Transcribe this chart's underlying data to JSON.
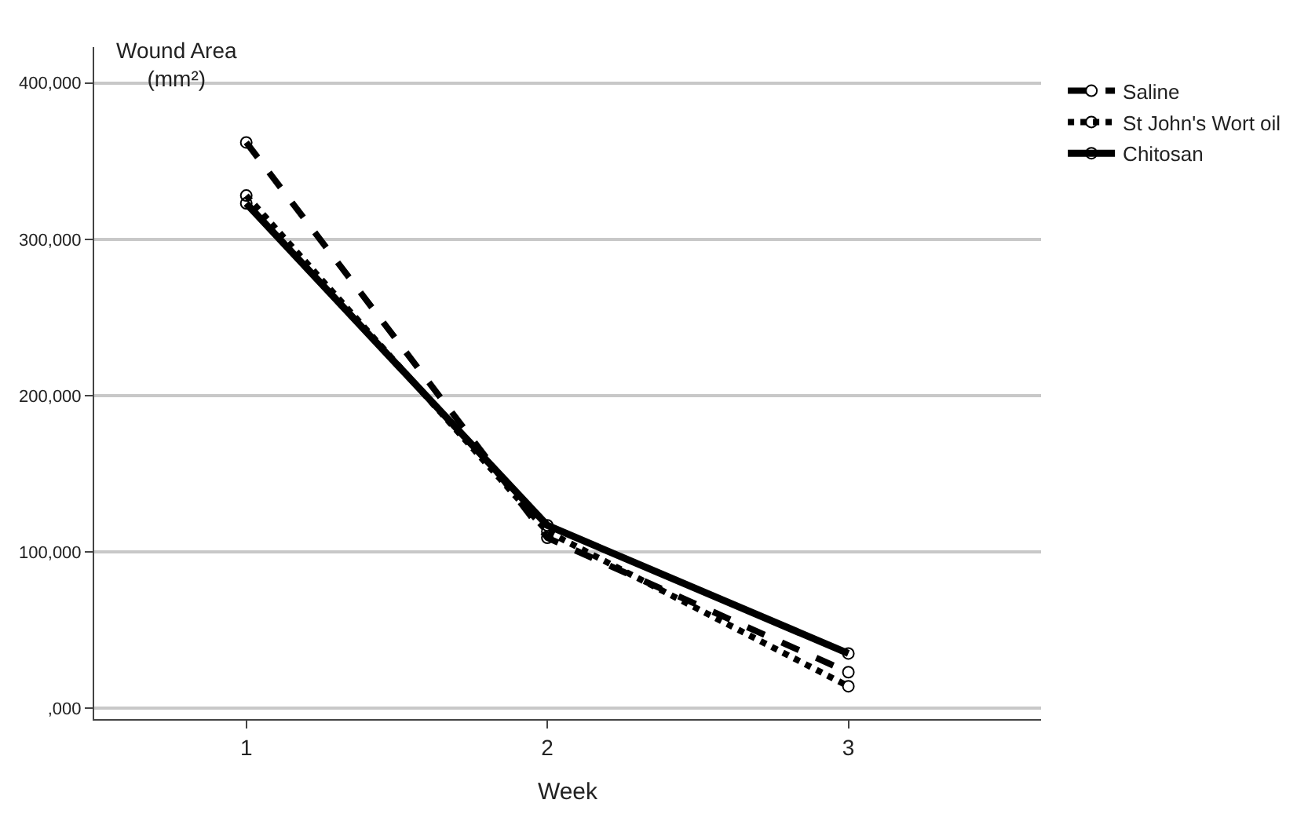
{
  "chart_data": {
    "type": "line",
    "xlabel": "Week",
    "ylabel": "Wound Area\n(mm²)",
    "x": [
      1,
      2,
      3
    ],
    "xlim": [
      0.495,
      3.64
    ],
    "xticks": [
      1,
      2,
      3
    ],
    "ylim": [
      -7000,
      423000
    ],
    "yticks": [
      {
        "value": 0,
        "label": ",000"
      },
      {
        "value": 100000,
        "label": "100,000"
      },
      {
        "value": 200000,
        "label": "200,000"
      },
      {
        "value": 300000,
        "label": "300,000"
      },
      {
        "value": 400000,
        "label": "400,000"
      }
    ],
    "grid": "y",
    "legend": "top right",
    "marker": "circle",
    "series": [
      {
        "name": "Saline",
        "color": "#000000",
        "line_style": "dashed",
        "values": [
          362000,
          109000,
          23000
        ]
      },
      {
        "name": "St John's Wort oil",
        "color": "#000000",
        "line_style": "dotted",
        "values": [
          328000,
          113000,
          14000
        ]
      },
      {
        "name": "Chitosan",
        "color": "#000000",
        "line_style": "solid",
        "values": [
          323000,
          117000,
          35000
        ]
      }
    ]
  }
}
